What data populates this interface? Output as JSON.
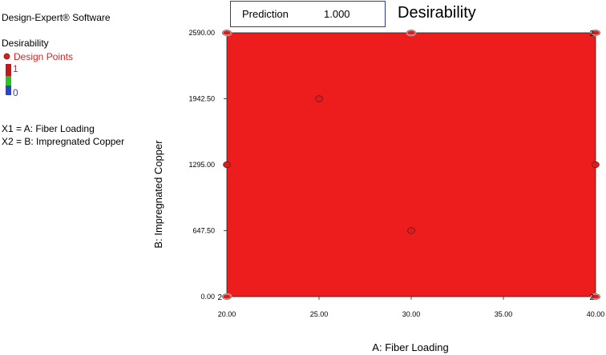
{
  "software": "Design-Expert® Software",
  "legend": {
    "response": "Desirability",
    "design_points_label": "Design Points",
    "scale_max": "1",
    "scale_min": "0",
    "x1_def": "X1 = A: Fiber Loading",
    "x2_def": "X2 = B: Impregnated Copper"
  },
  "prediction": {
    "label": "Prediction",
    "value": "1.000"
  },
  "chart_data": {
    "type": "heatmap",
    "title": "Desirability",
    "xlabel": "A: Fiber Loading",
    "ylabel": "B: Impregnated Copper",
    "xlim": [
      20,
      40
    ],
    "ylim": [
      0,
      2590
    ],
    "x_ticks": [
      "20.00",
      "25.00",
      "30.00",
      "35.00",
      "40.00"
    ],
    "y_ticks": [
      "0.00",
      "647.50",
      "1295.00",
      "1942.50",
      "2590.00"
    ],
    "fill_value": 1,
    "colors": {
      "fill": "#ee1d1d",
      "design_point": "#d42020"
    },
    "design_points": [
      {
        "x": 20,
        "y": 0,
        "replicates": "2"
      },
      {
        "x": 20,
        "y": 1295
      },
      {
        "x": 20,
        "y": 2590
      },
      {
        "x": 25,
        "y": 1942.5
      },
      {
        "x": 30,
        "y": 647.5
      },
      {
        "x": 30,
        "y": 2590
      },
      {
        "x": 40,
        "y": 0,
        "replicates": "2"
      },
      {
        "x": 40,
        "y": 1295
      },
      {
        "x": 40,
        "y": 2590,
        "replicates": "2"
      }
    ]
  }
}
